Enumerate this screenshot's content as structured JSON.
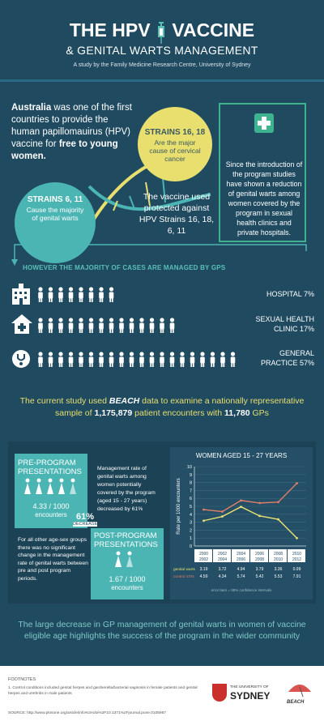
{
  "header": {
    "title_line1_a": "THE HPV",
    "title_line1_b": "VACCINE",
    "title_line2": "& GENITAL WARTS MANAGEMENT",
    "byline": "A study by the Family Medicine Research Centre, University of Sydney"
  },
  "intro": {
    "country": "Australia",
    "text_a": "was one of the first countries to provide the human papillomauirus (HPV) vaccine for",
    "free": "free",
    "text_b": "to young women."
  },
  "strains": {
    "s1618_title": "STRAINS 16, 18",
    "s1618_desc": "Are the major cause of cervical cancer",
    "s611_title": "STRAINS 6, 11",
    "s611_desc": "Cause the majority of genital warts",
    "vaccine_text": "The vaccine used protected against HPV Strains 16, 18, 6, 11"
  },
  "program_box": {
    "text": "Since the introduction of the program studies have shown a reduction of genital warts among women covered by the program in sexual health clinics and private hospitals."
  },
  "gps": {
    "heading": "HOWEVER THE MAJORITY OF CASES ARE MANAGED BY GPS",
    "rows": [
      {
        "label": "HOSPITAL 7%",
        "value": 7,
        "people": 8,
        "icon": "hospital-icon"
      },
      {
        "label_a": "SEXUAL HEALTH",
        "label_b": "CLINIC 17%",
        "value": 17,
        "people": 14,
        "icon": "clinic-icon"
      },
      {
        "label_a": "GENERAL",
        "label_b": "PRACTICE 57%",
        "value": 57,
        "people": 20,
        "icon": "stethoscope-icon"
      }
    ]
  },
  "study": {
    "text_a": "The current study used",
    "beach": "BEACH",
    "text_b": "data to examine a nationally representative sample of",
    "encounters": "1,175,879",
    "text_c": "patient encounters with",
    "gps": "11,780",
    "text_d": "GPs"
  },
  "pre": {
    "title": "PRE-PROGRAM PRESENTATIONS",
    "rate": "4.33 / 1000",
    "unit": "encounters",
    "decrease_pct": "61%",
    "decrease_label": "DECREASE"
  },
  "post": {
    "title": "POST-PROGRAM PRESENTATIONS",
    "rate": "1.67 / 1000",
    "unit": "encounters"
  },
  "notes": {
    "management": "Management rate of genital warts among women potentially covered by the program (aged 15 - 27 years) decreased by 61%",
    "other": "For all other age-sex groups there was no significant change in the management rate of genital warts between pre and post program periods."
  },
  "chart_data": {
    "type": "line",
    "title": "WOMEN AGED 15 - 27 YEARS",
    "ylabel": "Rate per 1000 encounters",
    "ylim": [
      0,
      10
    ],
    "yticks": [
      "0",
      "1",
      "2",
      "3",
      "4",
      "5",
      "6",
      "7",
      "8",
      "9",
      "10"
    ],
    "categories": [
      "2000 2002",
      "2002 2004",
      "2004 2006",
      "2006 2008",
      "2008 2010",
      "2010 2012"
    ],
    "series": [
      {
        "name": "genital warts",
        "color": "#e8df6e",
        "values": [
          3.19,
          3.72,
          4.94,
          3.79,
          3.36,
          0.99
        ]
      },
      {
        "name": "control STIs",
        "color": "#e07f67",
        "values": [
          4.59,
          4.34,
          5.74,
          5.42,
          5.53,
          7.91
        ]
      }
    ],
    "table_rows": [
      {
        "name": "genital warts",
        "values": [
          "3.19",
          "3.72",
          "4.94",
          "3.79",
          "3.36",
          "0.99"
        ]
      },
      {
        "name": "control STIs",
        "values": [
          "4.59",
          "4.34",
          "5.74",
          "5.42",
          "5.53",
          "7.91"
        ]
      }
    ],
    "note": "error bars = 95% confidence intervals"
  },
  "conclusion": "The large decrease in GP management of genital warts in women of vaccine eligible age highlights the success of the program in the wider community",
  "footer": {
    "footnotes_title": "FOOTNOTES",
    "footnote": "1. Control conditions included genital herpes and gardnerella/bacterial vaginosis in female patients and genital herpes and urethritis in male patients",
    "source": "SOURCE: http://www.plosone.org/article/info%3Adoi%2F10.1371%2Fjournal.pone.0105967",
    "uni_line1": "THE UNIVERSITY OF",
    "uni_line2": "SYDNEY",
    "beach_logo": "BEACH"
  }
}
